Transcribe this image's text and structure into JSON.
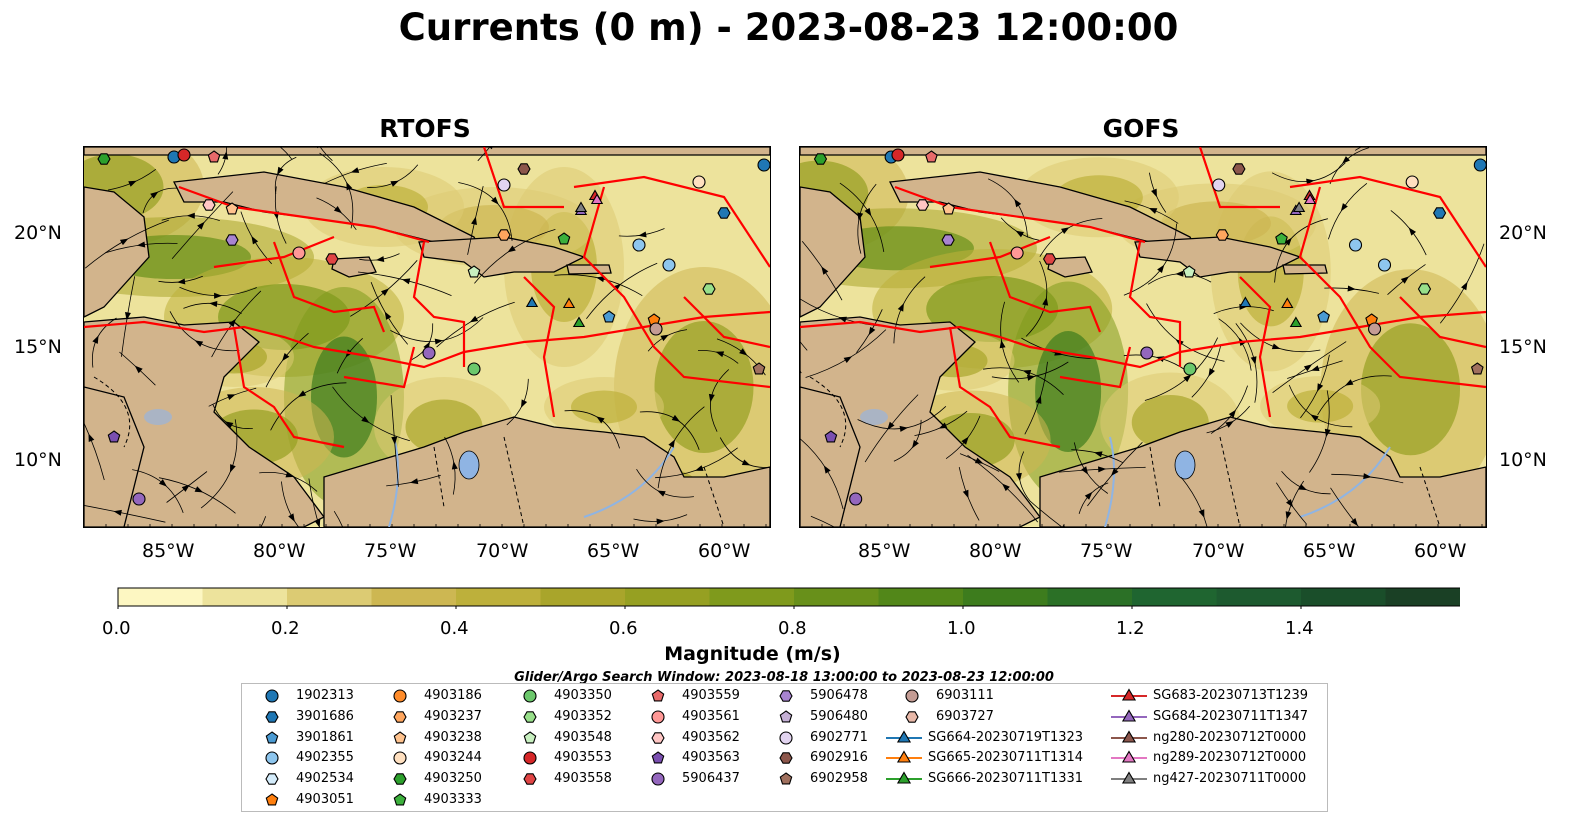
{
  "title": "Currents (0 m) - 2023-08-23 12:00:00",
  "panels": [
    {
      "title": "RTOFS"
    },
    {
      "title": "GOFS"
    }
  ],
  "map": {
    "lon_labels": [
      "85°W",
      "80°W",
      "75°W",
      "70°W",
      "65°W",
      "60°W"
    ],
    "lat_labels": [
      "20°N",
      "15°N",
      "10°N"
    ],
    "colors": {
      "land": "#d2b48c",
      "eez": "#ff0000",
      "water_features": "#8fb4e3",
      "streamlines": "#000000"
    }
  },
  "colorbar": {
    "label": "Magnitude (m/s)",
    "ticks": [
      "0.0",
      "0.2",
      "0.4",
      "0.6",
      "0.8",
      "1.0",
      "1.2",
      "1.4"
    ],
    "colors": [
      "#fdf7c2",
      "#ede39c",
      "#dccb73",
      "#cdb752",
      "#bdb03b",
      "#a9a52b",
      "#96a022",
      "#7f9a1c",
      "#68901a",
      "#528719",
      "#3d7c1d",
      "#2b7026",
      "#1f6530",
      "#1d5a2f",
      "#1a4e2a",
      "#1a4025",
      "#19331e"
    ]
  },
  "search_window": "Glider/Argo Search Window: 2023-08-18 13:00:00 to 2023-08-23 12:00:00",
  "legend": {
    "items": [
      {
        "label": "1902313",
        "marker": "circle",
        "color": "#1f77b4"
      },
      {
        "label": "3901686",
        "marker": "hexagon",
        "color": "#1f77b4"
      },
      {
        "label": "3901861",
        "marker": "pentagon",
        "color": "#4a9ad2"
      },
      {
        "label": "4902355",
        "marker": "circle",
        "color": "#8ec6ee"
      },
      {
        "label": "4902534",
        "marker": "hexagon",
        "color": "#d4ecfb"
      },
      {
        "label": "4903051",
        "marker": "pentagon",
        "color": "#ff7f0e"
      },
      {
        "label": "4903186",
        "marker": "circle",
        "color": "#ff8c2a"
      },
      {
        "label": "4903237",
        "marker": "hexagon",
        "color": "#ffa65e"
      },
      {
        "label": "4903238",
        "marker": "pentagon",
        "color": "#ffc38e"
      },
      {
        "label": "4903244",
        "marker": "circle",
        "color": "#ffe0c0"
      },
      {
        "label": "4903250",
        "marker": "hexagon",
        "color": "#2ca02c"
      },
      {
        "label": "4903333",
        "marker": "pentagon",
        "color": "#3cb03c"
      },
      {
        "label": "4903350",
        "marker": "circle",
        "color": "#6cc86c"
      },
      {
        "label": "4903352",
        "marker": "hexagon",
        "color": "#98df8a"
      },
      {
        "label": "4903548",
        "marker": "pentagon",
        "color": "#c8f0c0"
      },
      {
        "label": "4903553",
        "marker": "circle",
        "color": "#d62728"
      },
      {
        "label": "4903558",
        "marker": "hexagon",
        "color": "#e04444"
      },
      {
        "label": "4903559",
        "marker": "pentagon",
        "color": "#e86a6a"
      },
      {
        "label": "4903561",
        "marker": "circle",
        "color": "#ff9896"
      },
      {
        "label": "4903562",
        "marker": "hexagon",
        "color": "#ffc6c4"
      },
      {
        "label": "4903563",
        "marker": "pentagon",
        "color": "#7a4fb0"
      },
      {
        "label": "5906437",
        "marker": "circle",
        "color": "#9467bd"
      },
      {
        "label": "5906478",
        "marker": "hexagon",
        "color": "#a884d0"
      },
      {
        "label": "5906480",
        "marker": "pentagon",
        "color": "#c5b0d5"
      },
      {
        "label": "6902771",
        "marker": "circle",
        "color": "#e2d4f0"
      },
      {
        "label": "6902916",
        "marker": "hexagon",
        "color": "#8c564b"
      },
      {
        "label": "6902958",
        "marker": "pentagon",
        "color": "#a0705e"
      },
      {
        "label": "6903111",
        "marker": "circle",
        "color": "#c49c94"
      },
      {
        "label": "6903727",
        "marker": "hexagon",
        "color": "#e8b8a8"
      },
      {
        "label": "SG664-20230719T1323",
        "marker": "triangle-line",
        "color": "#1f77b4"
      },
      {
        "label": "SG665-20230711T1314",
        "marker": "triangle-line",
        "color": "#ff7f0e"
      },
      {
        "label": "SG666-20230711T1331",
        "marker": "triangle-line",
        "color": "#2ca02c"
      },
      {
        "label": "SG683-20230713T1239",
        "marker": "triangle-line",
        "color": "#d62728"
      },
      {
        "label": "SG684-20230711T1347",
        "marker": "triangle-line",
        "color": "#9467bd"
      },
      {
        "label": "ng280-20230712T0000",
        "marker": "triangle-line",
        "color": "#8c564b"
      },
      {
        "label": "ng289-20230712T0000",
        "marker": "triangle-line",
        "color": "#e377c2"
      },
      {
        "label": "ng427-20230711T0000",
        "marker": "triangle-line",
        "color": "#7f7f7f"
      }
    ]
  }
}
